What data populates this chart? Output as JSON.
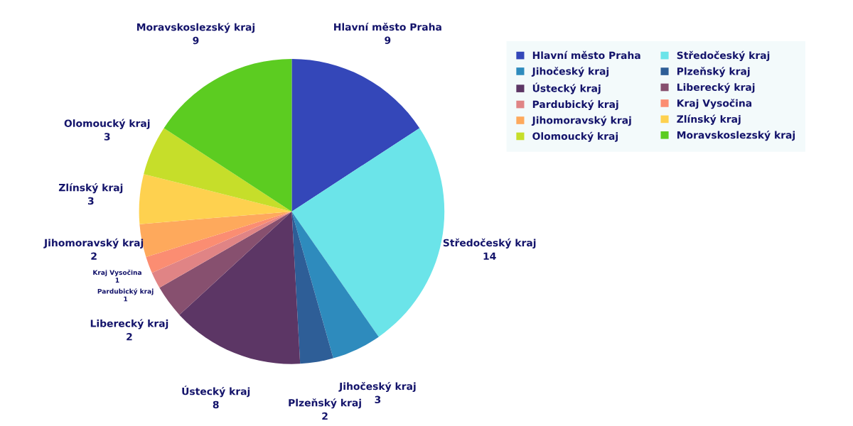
{
  "chart_data": {
    "type": "pie",
    "categories": [
      "Hlavní město Praha",
      "Středočeský kraj",
      "Jihočeský kraj",
      "Plzeňský kraj",
      "Ústecký kraj",
      "Liberecký kraj",
      "Pardubický kraj",
      "Kraj Vysočina",
      "Jihomoravský kraj",
      "Zlínský kraj",
      "Olomoucký kraj",
      "Moravskoslezský kraj"
    ],
    "values": [
      9,
      14,
      3,
      2,
      8,
      2,
      1,
      1,
      2,
      3,
      3,
      9
    ],
    "colors": [
      "#3447b9",
      "#6be4e9",
      "#2e8bbd",
      "#2e5e97",
      "#5c3665",
      "#87506f",
      "#e08485",
      "#fb8d72",
      "#fea95c",
      "#fed14f",
      "#c6de2a",
      "#5ccc21"
    ],
    "data_labels": true,
    "legend": "top right"
  }
}
